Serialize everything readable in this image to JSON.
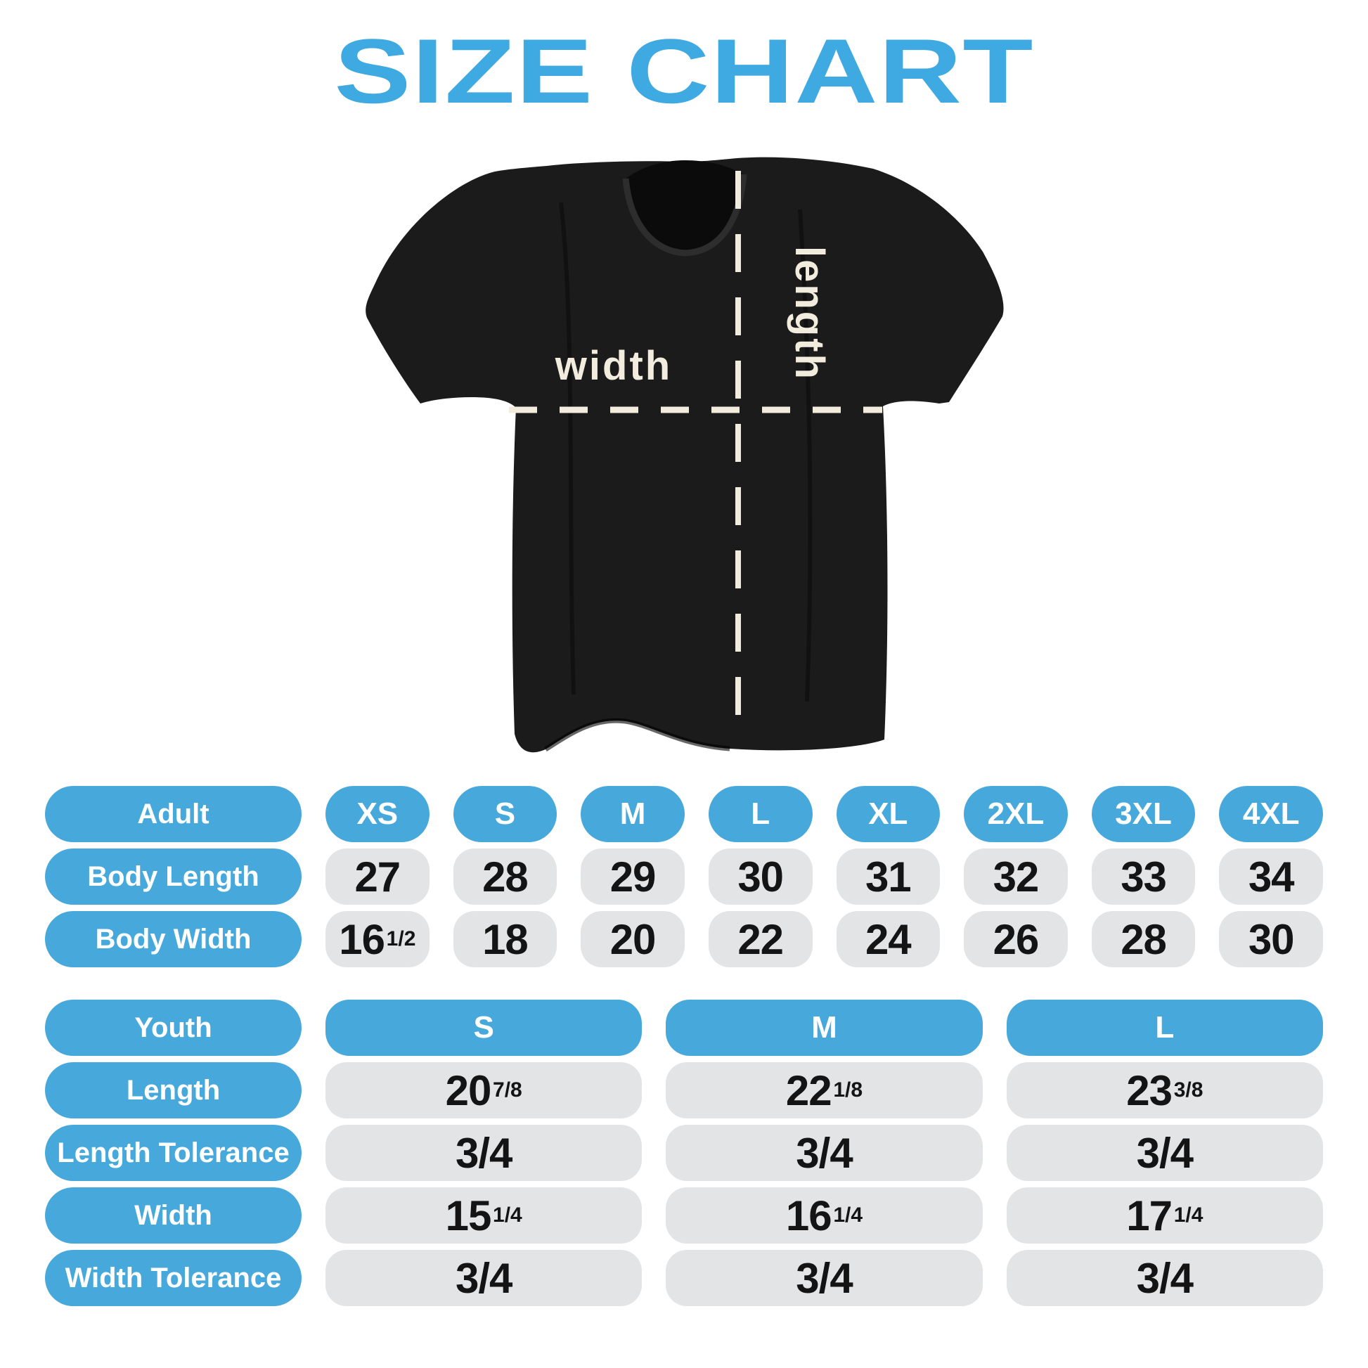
{
  "title": "SIZE CHART",
  "shirt": {
    "width_label": "width",
    "length_label": "length"
  },
  "colors": {
    "title_blue": "#3fa9e1",
    "blue": "#47a8db",
    "grey": "#e3e4e6",
    "shirt_black": "#1c1b1b",
    "collar_black": "#0b0b0b",
    "guide_cream": "#f2ecdf",
    "number_black": "#141414"
  },
  "chart_data": [
    {
      "type": "table",
      "name": "adult-size-table",
      "columns": [
        "Adult",
        "XS",
        "S",
        "M",
        "L",
        "XL",
        "2XL",
        "3XL",
        "4XL"
      ],
      "rows": [
        [
          "Body Length",
          "27",
          "28",
          "29",
          "30",
          "31",
          "32",
          "33",
          "34"
        ],
        [
          "Body Width",
          "16 1/2",
          "18",
          "20",
          "22",
          "24",
          "26",
          "28",
          "30"
        ]
      ]
    },
    {
      "type": "table",
      "name": "youth-size-table",
      "columns": [
        "Youth",
        "S",
        "M",
        "L"
      ],
      "rows": [
        [
          "Length",
          "20 7/8",
          "22 1/8",
          "23 3/8"
        ],
        [
          "Length Tolerance",
          "3/4",
          "3/4",
          "3/4"
        ],
        [
          "Width",
          "15 1/4",
          "16 1/4",
          "17 1/4"
        ],
        [
          "Width Tolerance",
          "3/4",
          "3/4",
          "3/4"
        ]
      ]
    }
  ]
}
